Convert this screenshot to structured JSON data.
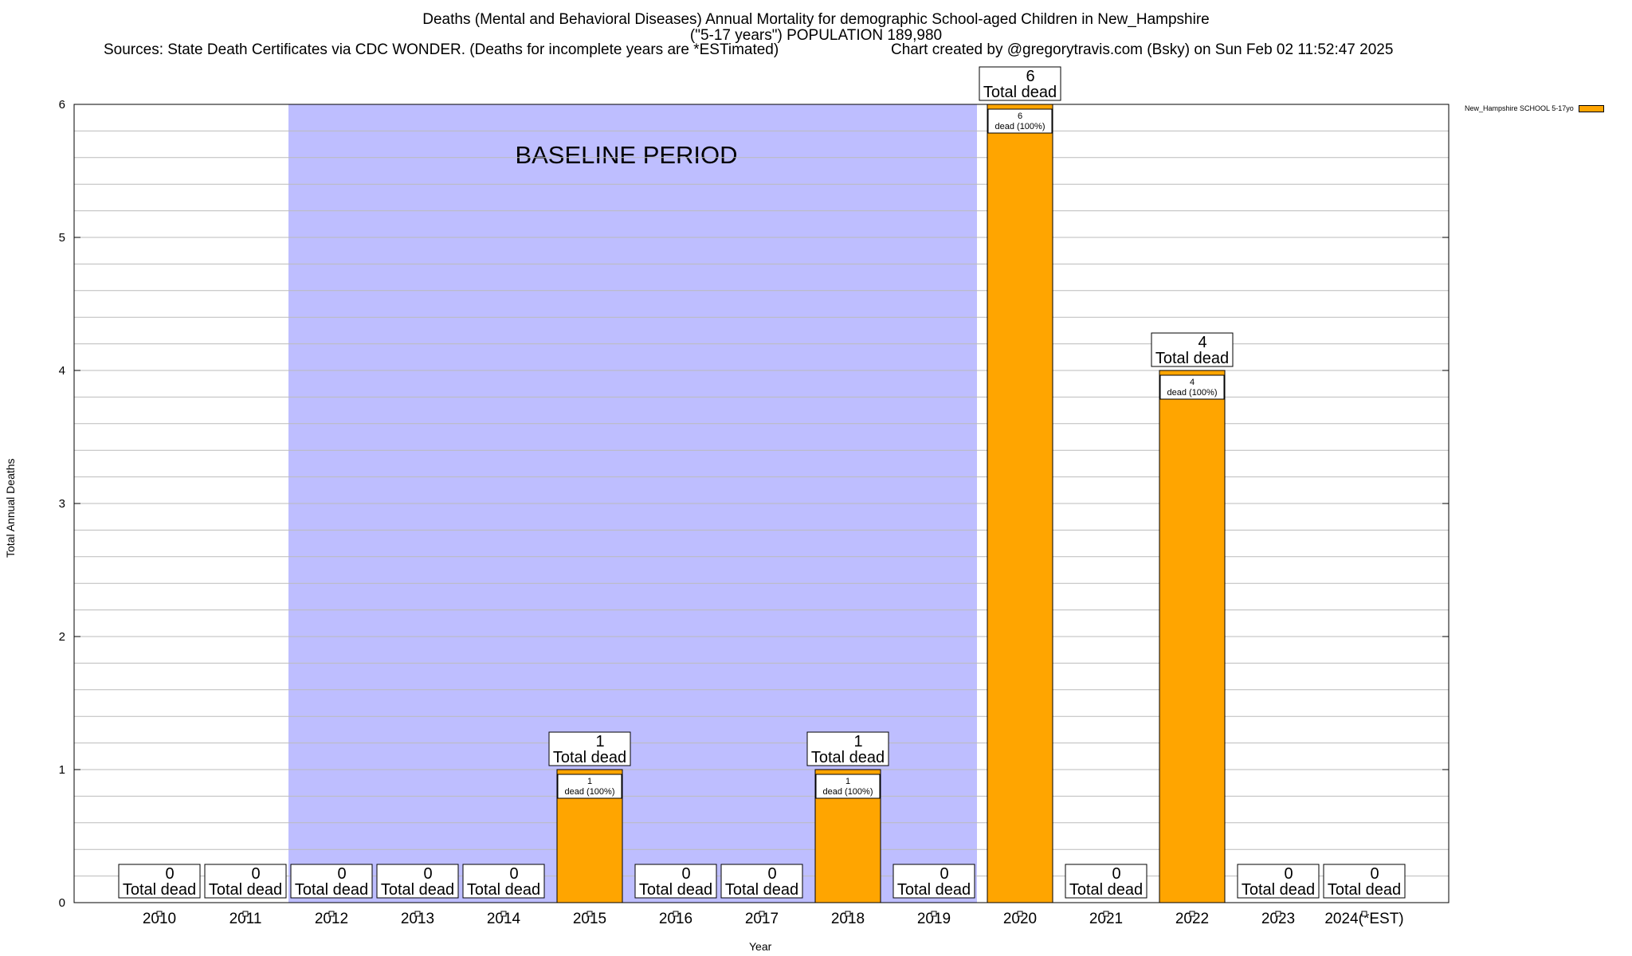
{
  "header": {
    "title_line1": "Deaths (Mental and Behavioral Diseases) Annual Mortality for demographic School-aged Children in New_Hampshire",
    "title_line2": "(\"5-17 years\") POPULATION 189,980",
    "sources": "Sources: State Death Certificates via CDC WONDER. (Deaths for incomplete years are *ESTimated)",
    "credit": "Chart created by @gregorytravis.com (Bsky) on Sun Feb 02 11:52:47 2025"
  },
  "colors": {
    "bar": "#FFA500",
    "baseline_shade": "#BEBEFF",
    "grid": "#BBBBBB"
  },
  "chart_data": {
    "type": "bar",
    "title": "Deaths (Mental and Behavioral Diseases) Annual Mortality for demographic School-aged Children in New_Hampshire",
    "xlabel": "Year",
    "ylabel": "Total Annual Deaths",
    "categories": [
      "2010",
      "2011",
      "2012",
      "2013",
      "2014",
      "2015",
      "2016",
      "2017",
      "2018",
      "2019",
      "2020",
      "2021",
      "2022",
      "2023",
      "2024(*EST)"
    ],
    "series": [
      {
        "name": "New_Hampshire SCHOOL 5-17yo",
        "values": [
          0,
          0,
          0,
          0,
          0,
          1,
          0,
          0,
          1,
          0,
          6,
          0,
          4,
          0,
          0
        ]
      }
    ],
    "ylim": [
      0,
      6
    ],
    "yticks": [
      0,
      1,
      2,
      3,
      4,
      5,
      6
    ],
    "grid": true,
    "legend_position": "top-right, outside plot",
    "total_label": "Total dead",
    "inner_label": "dead (100%)",
    "baseline": {
      "label": "BASELINE PERIOD",
      "from": "2012",
      "to": "2019"
    }
  }
}
